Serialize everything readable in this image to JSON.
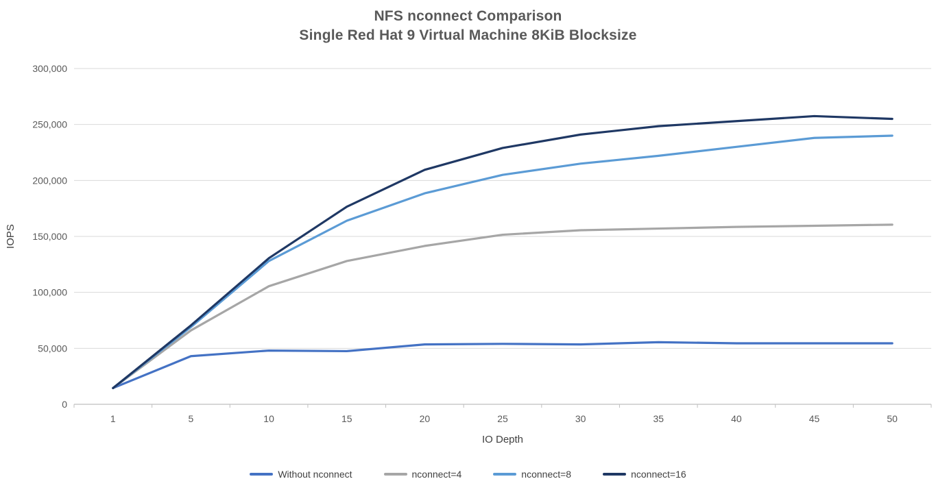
{
  "title": {
    "line1": "NFS nconnect Comparison",
    "line2": "Single Red Hat 9 Virtual Machine 8KiB Blocksize"
  },
  "chart_data": {
    "type": "line",
    "title": "NFS nconnect Comparison — Single Red Hat 9 Virtual Machine 8KiB Blocksize",
    "xlabel": "IO Depth",
    "ylabel": "IOPS",
    "categories": [
      "1",
      "5",
      "10",
      "15",
      "20",
      "25",
      "30",
      "35",
      "40",
      "45",
      "50"
    ],
    "ylim": [
      0,
      300000
    ],
    "ytick_step": 50000,
    "ytick_labels": [
      "0",
      "50,000",
      "100,000",
      "150,000",
      "200,000",
      "250,000",
      "300,000"
    ],
    "grid": "horizontal",
    "legend_position": "bottom",
    "axis_color": "#bfbfbf",
    "gridline_color": "#d9d9d9",
    "label_color": "#595959",
    "series": [
      {
        "name": "Without nconnect",
        "color": "#4472c4",
        "values": [
          14500,
          43000,
          48000,
          47500,
          53500,
          54000,
          53500,
          55500,
          54500,
          54500,
          54500
        ]
      },
      {
        "name": "nconnect=4",
        "color": "#a6a6a6",
        "values": [
          14500,
          66000,
          105500,
          128000,
          141500,
          151500,
          155500,
          157000,
          158500,
          159500,
          160500
        ]
      },
      {
        "name": "nconnect=8",
        "color": "#5b9bd5",
        "values": [
          14500,
          69000,
          128000,
          164000,
          188500,
          205000,
          215000,
          222000,
          230000,
          238000,
          240000
        ]
      },
      {
        "name": "nconnect=16",
        "color": "#1f3864",
        "values": [
          14500,
          70500,
          130500,
          176500,
          209500,
          229000,
          241000,
          248500,
          253000,
          257500,
          255000
        ]
      }
    ]
  }
}
